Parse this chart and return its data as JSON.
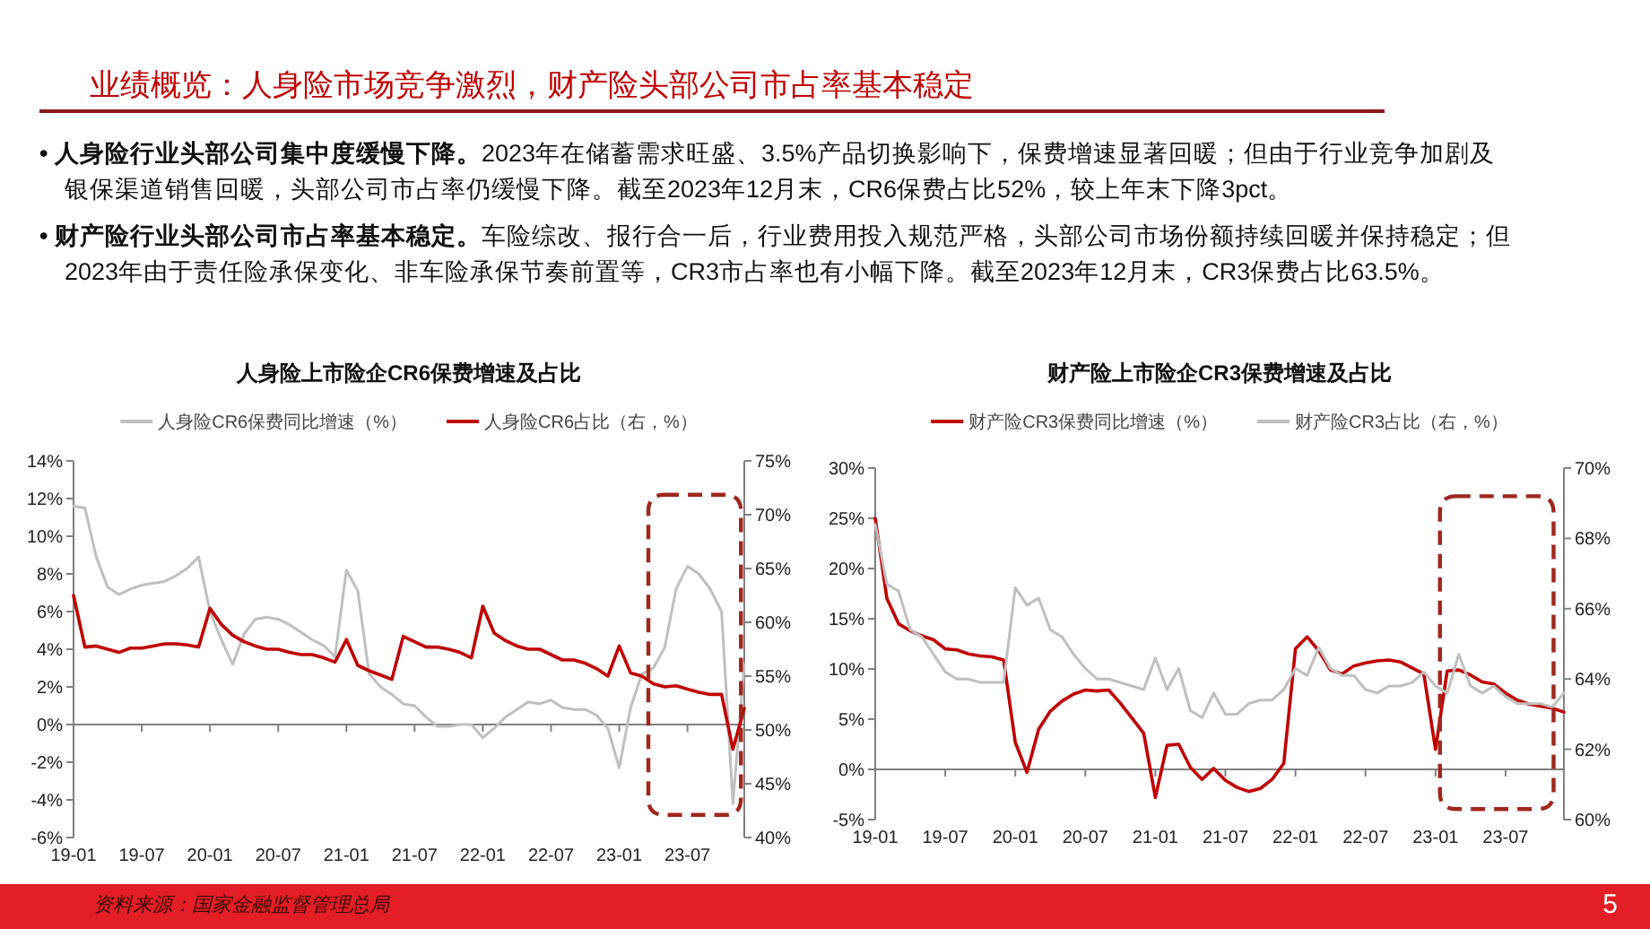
{
  "chart_data": [
    {
      "type": "other",
      "title": "业绩概览：人身险市场竞争激烈，财产险头部公司市占率基本稳定",
      "annotations": [
        "• 人身险行业头部公司集中度缓慢下降。2023年在储蓄需求旺盛、3.5%产品切换影响下，保费增速显著回暖；但由于行业竞争加剧及银保渠道销售回暖，头部公司市占率仍缓慢下降。截至2023年12月末，CR6保费占比52%，较上年末下降3pct。",
        "• 财产险行业头部公司市占率基本稳定。车险综改、报行合一后，行业费用投入规范严格，头部公司市场份额持续回暖并保持稳定；但2023年由于责任险承保变化、非车险承保节奏前置等，CR3市占率也有小幅下降。截至2023年12月末，CR3保费占比63.5%。",
        "资料来源：国家金融监督管理总局",
        "5"
      ]
    },
    {
      "type": "line",
      "title": "人身险上市险企CR6保费增速及占比",
      "legend": "top",
      "grid": false,
      "x": [
        "2019-01",
        "2019-02",
        "2019-03",
        "2019-04",
        "2019-05",
        "2019-06",
        "2019-07",
        "2019-08",
        "2019-09",
        "2019-10",
        "2019-11",
        "2019-12",
        "2020-01",
        "2020-02",
        "2020-03",
        "2020-04",
        "2020-05",
        "2020-06",
        "2020-07",
        "2020-08",
        "2020-09",
        "2020-10",
        "2020-11",
        "2020-12",
        "2021-01",
        "2021-02",
        "2021-03",
        "2021-04",
        "2021-05",
        "2021-06",
        "2021-07",
        "2021-08",
        "2021-09",
        "2021-10",
        "2021-11",
        "2021-12",
        "2022-01",
        "2022-02",
        "2022-03",
        "2022-04",
        "2022-05",
        "2022-06",
        "2022-07",
        "2022-08",
        "2022-09",
        "2022-10",
        "2022-11",
        "2022-12",
        "2023-01",
        "2023-02",
        "2023-03",
        "2023-04",
        "2023-05",
        "2023-06",
        "2023-07",
        "2023-08",
        "2023-09",
        "2023-10",
        "2023-11",
        "2023-12"
      ],
      "xlim": [
        "2019-01",
        "2023-12"
      ],
      "xticks": [
        {
          "value": "2019-01",
          "label": "19-01"
        },
        {
          "value": "2019-07",
          "label": "19-07"
        },
        {
          "value": "2020-01",
          "label": "20-01"
        },
        {
          "value": "2020-07",
          "label": "20-07"
        },
        {
          "value": "2021-01",
          "label": "21-01"
        },
        {
          "value": "2021-07",
          "label": "21-07"
        },
        {
          "value": "2022-01",
          "label": "22-01"
        },
        {
          "value": "2022-07",
          "label": "22-07"
        },
        {
          "value": "2023-01",
          "label": "23-01"
        },
        {
          "value": "2023-07",
          "label": "23-07"
        }
      ],
      "ylim": [
        -6,
        14
      ],
      "yticks": [
        {
          "value": -6,
          "label": "-6%"
        },
        {
          "value": -4,
          "label": "-4%"
        },
        {
          "value": -2,
          "label": "-2%"
        },
        {
          "value": 0,
          "label": "0%"
        },
        {
          "value": 2,
          "label": "2%"
        },
        {
          "value": 4,
          "label": "4%"
        },
        {
          "value": 6,
          "label": "6%"
        },
        {
          "value": 8,
          "label": "8%"
        },
        {
          "value": 10,
          "label": "10%"
        },
        {
          "value": 12,
          "label": "12%"
        },
        {
          "value": 14,
          "label": "14%"
        }
      ],
      "y2lim": [
        40,
        75
      ],
      "y2ticks": [
        {
          "value": 40,
          "label": "40%"
        },
        {
          "value": 45,
          "label": "45%"
        },
        {
          "value": 50,
          "label": "50%"
        },
        {
          "value": 55,
          "label": "55%"
        },
        {
          "value": 60,
          "label": "60%"
        },
        {
          "value": 65,
          "label": "65%"
        },
        {
          "value": 70,
          "label": "70%"
        },
        {
          "value": 75,
          "label": "75%"
        }
      ],
      "ref_lines": [
        {
          "axis": "y",
          "value": 0,
          "color": "#808080"
        }
      ],
      "series": [
        {
          "name": "人身险CR6保费同比增速（%）",
          "color": "#bfbfbf",
          "values": [
            11.6,
            11.5,
            8.9,
            7.3,
            6.9,
            7.2,
            7.4,
            7.5,
            7.6,
            7.9,
            8.3,
            8.9,
            6.0,
            4.5,
            3.2,
            4.8,
            5.6,
            5.7,
            5.6,
            5.3,
            4.9,
            4.5,
            4.2,
            3.6,
            8.2,
            7.1,
            2.7,
            2.0,
            1.6,
            1.1,
            1.0,
            0.4,
            -0.1,
            -0.1,
            0.0,
            0.0,
            -0.7,
            -0.2,
            0.4,
            0.8,
            1.2,
            1.1,
            1.3,
            0.9,
            0.8,
            0.8,
            0.5,
            -0.2,
            -2.3,
            0.9,
            2.7,
            3.0,
            4.1,
            7.2,
            8.4,
            8.0,
            7.2,
            6.0,
            -4.2,
            3.2
          ]
        },
        {
          "name": "人身险CR6占比（右，%）",
          "color": "#c00000",
          "axis": "y2",
          "values": [
            62.5,
            57.7,
            57.8,
            57.5,
            57.2,
            57.6,
            57.6,
            57.8,
            58.0,
            58.0,
            57.9,
            57.7,
            61.3,
            59.8,
            58.8,
            58.2,
            57.8,
            57.5,
            57.5,
            57.2,
            57.0,
            57.0,
            56.7,
            56.3,
            58.4,
            56.0,
            55.5,
            55.1,
            54.7,
            58.7,
            58.2,
            57.7,
            57.7,
            57.5,
            57.2,
            56.7,
            61.5,
            59.0,
            58.3,
            57.8,
            57.5,
            57.5,
            57.0,
            56.5,
            56.5,
            56.2,
            55.7,
            55.0,
            57.8,
            55.3,
            55.0,
            54.3,
            54.0,
            54.1,
            53.8,
            53.5,
            53.3,
            53.3,
            48.2,
            52.0
          ]
        }
      ]
    },
    {
      "type": "line",
      "title": "财产险上市险企CR3保费增速及占比",
      "legend": "top",
      "grid": false,
      "x": [
        "2019-01",
        "2019-02",
        "2019-03",
        "2019-04",
        "2019-05",
        "2019-06",
        "2019-07",
        "2019-08",
        "2019-09",
        "2019-10",
        "2019-11",
        "2019-12",
        "2020-01",
        "2020-02",
        "2020-03",
        "2020-04",
        "2020-05",
        "2020-06",
        "2020-07",
        "2020-08",
        "2020-09",
        "2020-10",
        "2020-11",
        "2020-12",
        "2021-01",
        "2021-02",
        "2021-03",
        "2021-04",
        "2021-05",
        "2021-06",
        "2021-07",
        "2021-08",
        "2021-09",
        "2021-10",
        "2021-11",
        "2021-12",
        "2022-01",
        "2022-02",
        "2022-03",
        "2022-04",
        "2022-05",
        "2022-06",
        "2022-07",
        "2022-08",
        "2022-09",
        "2022-10",
        "2022-11",
        "2022-12",
        "2023-01",
        "2023-02",
        "2023-03",
        "2023-04",
        "2023-05",
        "2023-06",
        "2023-07",
        "2023-08",
        "2023-09",
        "2023-10",
        "2023-11",
        "2023-12"
      ],
      "xlim": [
        "2019-01",
        "2023-12"
      ],
      "xticks": [
        {
          "value": "2019-01",
          "label": "19-01"
        },
        {
          "value": "2019-07",
          "label": "19-07"
        },
        {
          "value": "2020-01",
          "label": "20-01"
        },
        {
          "value": "2020-07",
          "label": "20-07"
        },
        {
          "value": "2021-01",
          "label": "21-01"
        },
        {
          "value": "2021-07",
          "label": "21-07"
        },
        {
          "value": "2022-01",
          "label": "22-01"
        },
        {
          "value": "2022-07",
          "label": "22-07"
        },
        {
          "value": "2023-01",
          "label": "23-01"
        },
        {
          "value": "2023-07",
          "label": "23-07"
        }
      ],
      "ylim": [
        -5,
        30
      ],
      "yticks": [
        {
          "value": -5,
          "label": "-5%"
        },
        {
          "value": 0,
          "label": "0%"
        },
        {
          "value": 5,
          "label": "5%"
        },
        {
          "value": 10,
          "label": "10%"
        },
        {
          "value": 15,
          "label": "15%"
        },
        {
          "value": 20,
          "label": "20%"
        },
        {
          "value": 25,
          "label": "25%"
        },
        {
          "value": 30,
          "label": "30%"
        }
      ],
      "y2lim": [
        60,
        70
      ],
      "y2ticks": [
        {
          "value": 60,
          "label": "60%"
        },
        {
          "value": 62,
          "label": "62%"
        },
        {
          "value": 64,
          "label": "64%"
        },
        {
          "value": 66,
          "label": "66%"
        },
        {
          "value": 68,
          "label": "68%"
        },
        {
          "value": 70,
          "label": "70%"
        }
      ],
      "ref_lines": [
        {
          "axis": "y",
          "value": 0,
          "color": "#808080"
        }
      ],
      "series": [
        {
          "name": "财产险CR3保费同比增速（%）",
          "color": "#c00000",
          "values": [
            25.0,
            17.0,
            14.5,
            13.8,
            13.3,
            12.9,
            12.0,
            11.9,
            11.5,
            11.3,
            11.2,
            10.9,
            2.7,
            -0.3,
            4.0,
            5.8,
            6.8,
            7.5,
            7.9,
            7.8,
            7.9,
            6.6,
            5.1,
            3.6,
            -2.8,
            2.4,
            2.5,
            0.2,
            -1.0,
            0.1,
            -1.1,
            -1.8,
            -2.2,
            -1.9,
            -1.0,
            0.6,
            12.0,
            13.2,
            11.8,
            9.9,
            9.5,
            10.3,
            10.6,
            10.8,
            10.9,
            10.7,
            10.1,
            9.5,
            2.0,
            9.8,
            9.9,
            9.4,
            8.7,
            8.5,
            7.6,
            6.9,
            6.5,
            6.3,
            6.1,
            5.7
          ]
        },
        {
          "name": "财产险CR3占比（右，%）",
          "color": "#bfbfbf",
          "axis": "y2",
          "values": [
            68.4,
            66.7,
            66.5,
            65.4,
            65.2,
            64.7,
            64.2,
            64.0,
            64.0,
            63.9,
            63.9,
            63.9,
            66.6,
            66.1,
            66.3,
            65.4,
            65.2,
            64.7,
            64.3,
            64.0,
            64.0,
            63.9,
            63.8,
            63.7,
            64.6,
            63.7,
            64.3,
            63.1,
            62.9,
            63.6,
            63.0,
            63.0,
            63.3,
            63.4,
            63.4,
            63.7,
            64.3,
            64.1,
            64.9,
            64.3,
            64.1,
            64.1,
            63.7,
            63.6,
            63.8,
            63.8,
            63.9,
            64.2,
            63.8,
            63.6,
            64.7,
            63.8,
            63.6,
            63.8,
            63.5,
            63.3,
            63.3,
            63.3,
            63.2,
            63.6
          ]
        }
      ]
    }
  ]
}
